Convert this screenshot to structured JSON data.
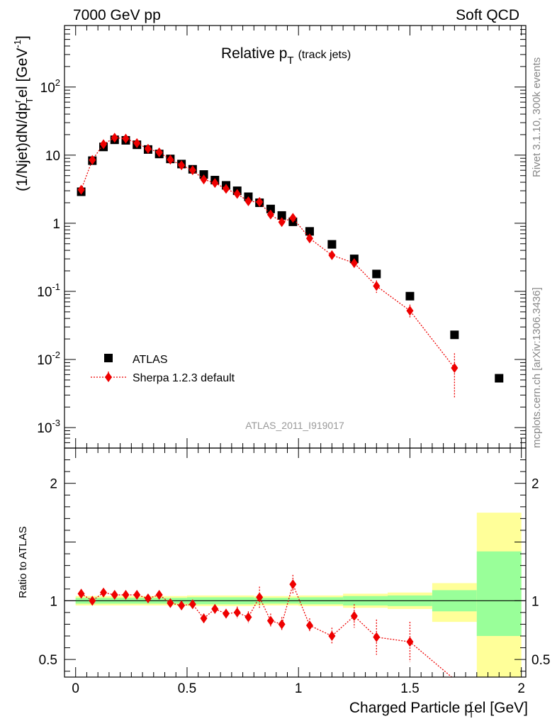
{
  "header": {
    "left": "7000 GeV pp",
    "right": "Soft QCD"
  },
  "side_text": {
    "rivet": "Rivet 3.1.10,  300k events",
    "mcplots": "mcplots.cern.ch [arXiv:1306.3436]"
  },
  "chart_data": [
    {
      "type": "scatter",
      "title_main": "Relative p",
      "title_sub": "T",
      "title_note": "(track jets)",
      "ylabel_html": "(1/Njet)dN/dp",
      "ylabel_sup": "r",
      "ylabel_sub": "T",
      "ylabel_rest": "el [GeV",
      "ylabel_sup2": "-1",
      "ylabel_end": "]",
      "yscale": "log",
      "ylim": [
        0.0005,
        800
      ],
      "xlim": [
        -0.05,
        2.02
      ],
      "ytick_labels": {
        "0.001": "10-3",
        "0.01": "10-2",
        "0.1": "10-1",
        "1": "1",
        "10": "10",
        "100": "102"
      },
      "watermark": "ATLAS_2011_I919017",
      "legend": {
        "position": "lower-left",
        "entries": [
          "ATLAS",
          "Sherpa 1.2.3 default"
        ]
      },
      "series": [
        {
          "name": "ATLAS",
          "marker": "square",
          "color": "#000000",
          "x": [
            0.025,
            0.075,
            0.125,
            0.175,
            0.225,
            0.275,
            0.325,
            0.375,
            0.425,
            0.475,
            0.525,
            0.575,
            0.625,
            0.675,
            0.725,
            0.775,
            0.825,
            0.875,
            0.925,
            0.975,
            1.05,
            1.15,
            1.25,
            1.35,
            1.5,
            1.7,
            1.9
          ],
          "y": [
            2.9,
            8.3,
            13.2,
            16.8,
            16.5,
            14.2,
            12.1,
            10.4,
            8.8,
            7.4,
            6.2,
            5.2,
            4.3,
            3.6,
            3.0,
            2.45,
            2.0,
            1.62,
            1.3,
            1.05,
            0.76,
            0.49,
            0.3,
            0.18,
            0.085,
            0.023,
            0.0053
          ]
        },
        {
          "name": "Sherpa 1.2.3 default",
          "marker": "diamond",
          "color": "#ee0000",
          "linestyle": "dotted",
          "x": [
            0.025,
            0.075,
            0.125,
            0.175,
            0.225,
            0.275,
            0.325,
            0.375,
            0.425,
            0.475,
            0.525,
            0.575,
            0.625,
            0.675,
            0.725,
            0.775,
            0.825,
            0.875,
            0.925,
            0.975,
            1.05,
            1.15,
            1.25,
            1.35,
            1.5,
            1.7
          ],
          "y": [
            3.1,
            8.5,
            14.5,
            18.0,
            17.5,
            15.0,
            12.4,
            11.0,
            8.6,
            7.1,
            6.0,
            4.4,
            3.9,
            3.2,
            2.7,
            2.1,
            2.05,
            1.34,
            1.04,
            1.2,
            0.6,
            0.34,
            0.26,
            0.12,
            0.052,
            0.0075
          ],
          "yerr": [
            0.06,
            0.1,
            0.2,
            0.25,
            0.25,
            0.2,
            0.2,
            0.2,
            0.15,
            0.15,
            0.12,
            0.1,
            0.1,
            0.08,
            0.08,
            0.06,
            0.08,
            0.05,
            0.05,
            0.06,
            0.04,
            0.03,
            0.025,
            0.025,
            0.012,
            0.0048
          ]
        }
      ]
    },
    {
      "type": "scatter",
      "ylabel": "Ratio to ATLAS",
      "xlabel_main": "Charged Particle p",
      "xlabel_sup": "r",
      "xlabel_sub": "T",
      "xlabel_rest": "el [GeV]",
      "ylim": [
        0.35,
        2.3
      ],
      "xlim": [
        -0.05,
        2.02
      ],
      "xticks": [
        0,
        0.5,
        1,
        1.5,
        2
      ],
      "xtick_labels": [
        "0",
        "0.5",
        "1",
        "1.5",
        "2"
      ],
      "yticks": [
        0.5,
        1,
        2
      ],
      "ytick_labels": [
        "0.5",
        "1",
        "2"
      ],
      "bands": [
        {
          "x0": 0.0,
          "x1": 0.5,
          "green": [
            0.975,
            1.025
          ],
          "yellow": [
            0.96,
            1.04
          ]
        },
        {
          "x0": 0.5,
          "x1": 0.8,
          "green": [
            0.97,
            1.03
          ],
          "yellow": [
            0.955,
            1.045
          ]
        },
        {
          "x0": 0.8,
          "x1": 1.0,
          "green": [
            0.975,
            1.025
          ],
          "yellow": [
            0.96,
            1.04
          ]
        },
        {
          "x0": 1.0,
          "x1": 1.2,
          "green": [
            0.97,
            1.03
          ],
          "yellow": [
            0.955,
            1.045
          ]
        },
        {
          "x0": 1.2,
          "x1": 1.4,
          "green": [
            0.96,
            1.04
          ],
          "yellow": [
            0.94,
            1.06
          ]
        },
        {
          "x0": 1.4,
          "x1": 1.6,
          "green": [
            0.955,
            1.045
          ],
          "yellow": [
            0.93,
            1.07
          ]
        },
        {
          "x0": 1.6,
          "x1": 1.8,
          "green": [
            0.91,
            1.09
          ],
          "yellow": [
            0.82,
            1.15
          ]
        },
        {
          "x0": 1.8,
          "x1": 2.0,
          "green": [
            0.7,
            1.42
          ],
          "yellow": [
            0.3,
            1.75
          ]
        }
      ],
      "series": [
        {
          "name": "Sherpa 1.2.3 default",
          "color": "#ee0000",
          "x": [
            0.025,
            0.075,
            0.125,
            0.175,
            0.225,
            0.275,
            0.325,
            0.375,
            0.425,
            0.475,
            0.525,
            0.575,
            0.625,
            0.675,
            0.725,
            0.775,
            0.825,
            0.875,
            0.925,
            0.975,
            1.05,
            1.15,
            1.25,
            1.35,
            1.5,
            1.7
          ],
          "y": [
            1.06,
            1.0,
            1.07,
            1.05,
            1.05,
            1.05,
            1.02,
            1.05,
            0.98,
            0.96,
            0.97,
            0.85,
            0.93,
            0.89,
            0.9,
            0.86,
            1.03,
            0.83,
            0.8,
            1.14,
            0.79,
            0.7,
            0.87,
            0.69,
            0.65,
            0.33
          ],
          "yerr": [
            0.04,
            0.03,
            0.03,
            0.025,
            0.025,
            0.025,
            0.025,
            0.025,
            0.025,
            0.025,
            0.025,
            0.04,
            0.04,
            0.04,
            0.05,
            0.05,
            0.09,
            0.06,
            0.06,
            0.08,
            0.06,
            0.07,
            0.1,
            0.15,
            0.17,
            0.3
          ]
        }
      ]
    }
  ]
}
